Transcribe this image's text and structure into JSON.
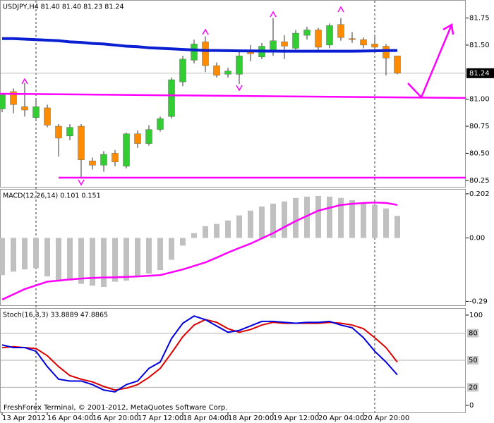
{
  "chart_data": [
    {
      "type": "candlestick",
      "title": "USDJPY,H4  81.40 81.40 81.23 81.24",
      "categories": [
        "13 Apr 2012",
        null,
        null,
        null,
        "16 Apr 04:00",
        null,
        null,
        null,
        "16 Apr 20:00",
        null,
        null,
        null,
        "17 Apr 12:00",
        null,
        null,
        null,
        "18 Apr 04:00",
        null,
        null,
        null,
        "18 Apr 20:00",
        null,
        null,
        null,
        "19 Apr 12:00",
        null,
        null,
        null,
        "20 Apr 04:00",
        null,
        null,
        null,
        "20 Apr 20:00",
        null,
        null,
        null
      ],
      "open": [
        80.91,
        81.07,
        80.93,
        80.83,
        80.92,
        80.75,
        80.66,
        80.75,
        80.43,
        80.39,
        80.5,
        80.38,
        80.68,
        80.59,
        80.72,
        80.84,
        81.16,
        81.36,
        81.53,
        81.31,
        81.23,
        81.23,
        81.45,
        81.39,
        81.45,
        81.53,
        81.47,
        81.59,
        81.64,
        81.5,
        81.69,
        81.56,
        81.55,
        81.51,
        81.49,
        81.4
      ],
      "high": [
        81.05,
        81.1,
        81.15,
        81.0,
        80.95,
        80.77,
        80.77,
        80.77,
        80.46,
        80.52,
        80.53,
        80.69,
        80.71,
        80.76,
        80.84,
        81.2,
        81.4,
        81.55,
        81.58,
        81.34,
        81.29,
        81.45,
        81.5,
        81.52,
        81.75,
        81.59,
        81.64,
        81.67,
        81.66,
        81.7,
        81.75,
        81.62,
        81.57,
        81.59,
        81.51,
        81.4
      ],
      "low": [
        80.88,
        80.87,
        80.84,
        80.8,
        80.74,
        80.47,
        80.62,
        80.27,
        80.35,
        80.33,
        80.38,
        80.36,
        80.55,
        80.57,
        80.7,
        80.82,
        81.12,
        81.33,
        81.25,
        81.2,
        81.2,
        81.14,
        81.35,
        81.37,
        81.4,
        81.37,
        81.44,
        81.55,
        81.45,
        81.47,
        81.54,
        81.52,
        81.47,
        81.45,
        81.22,
        81.23
      ],
      "close": [
        81.04,
        80.95,
        80.9,
        80.93,
        80.76,
        80.64,
        80.74,
        80.44,
        80.39,
        80.49,
        80.42,
        80.68,
        80.59,
        80.72,
        80.82,
        81.18,
        81.37,
        81.51,
        81.31,
        81.22,
        81.26,
        81.4,
        81.42,
        81.49,
        81.54,
        81.49,
        81.61,
        81.64,
        81.48,
        81.68,
        81.57,
        81.55,
        81.5,
        81.48,
        81.38,
        81.24
      ],
      "up_color": "#32cd32",
      "down_color": "#ff8c00",
      "ma": {
        "color": "#0a1ed2",
        "values": [
          81.56,
          81.56,
          81.555,
          81.55,
          81.545,
          81.54,
          81.53,
          81.525,
          81.515,
          81.51,
          81.5,
          81.49,
          81.485,
          81.475,
          81.47,
          81.465,
          81.46,
          81.455,
          81.45,
          81.45,
          81.448,
          81.447,
          81.446,
          81.445,
          81.444,
          81.443,
          81.443,
          81.443,
          81.443,
          81.443,
          81.443,
          81.443,
          81.445,
          81.447,
          81.449,
          81.45
        ]
      },
      "last_price": 81.24,
      "ylim": [
        80.19,
        81.91
      ],
      "yticks": [
        81.75,
        {
          "value": 81.5,
          "label": "81.50"
        },
        {
          "value": 81.0,
          "label": "81.00"
        },
        80.75,
        {
          "value": 80.5,
          "label": "80.50"
        },
        80.25
      ]
    },
    {
      "type": "macd",
      "title": "MACD(12,26,14) 0.101 0.151",
      "histogram": {
        "color": "#c0c0c0",
        "values": [
          -0.17,
          -0.154,
          -0.144,
          -0.138,
          -0.176,
          -0.2,
          -0.195,
          -0.21,
          -0.218,
          -0.224,
          -0.2,
          -0.195,
          -0.176,
          -0.163,
          -0.147,
          -0.1,
          -0.035,
          0.022,
          0.054,
          0.064,
          0.08,
          0.103,
          0.125,
          0.144,
          0.157,
          0.167,
          0.183,
          0.189,
          0.192,
          0.189,
          0.183,
          0.173,
          0.163,
          0.151,
          0.135,
          0.101
        ]
      },
      "signal": {
        "color": "#ff00ff",
        "values": [
          -0.282,
          -0.258,
          -0.234,
          -0.217,
          -0.2,
          -0.195,
          -0.19,
          -0.186,
          -0.183,
          -0.181,
          -0.18,
          -0.178,
          -0.176,
          -0.173,
          -0.17,
          -0.157,
          -0.144,
          -0.128,
          -0.112,
          -0.09,
          -0.067,
          -0.046,
          -0.026,
          -0.002,
          0.022,
          0.05,
          0.077,
          0.101,
          0.125,
          0.138,
          0.151,
          0.156,
          0.16,
          0.162,
          0.16,
          0.151
        ]
      },
      "ylim": [
        -0.308,
        0.221
      ],
      "yticks": [
        0.202,
        {
          "value": 0,
          "label": "0.00"
        },
        -0.29
      ]
    },
    {
      "type": "stochastic",
      "title": "Stoch(16,3,3) 33.8889 47.8865",
      "main": {
        "color": "#0000dd",
        "values": [
          67,
          64,
          64,
          60,
          43,
          29,
          27,
          27,
          23,
          17,
          15,
          23,
          27,
          41,
          48,
          74,
          91,
          99,
          95,
          88,
          81,
          83,
          88,
          93,
          93,
          92,
          91,
          92,
          92,
          93,
          89,
          86,
          75,
          60,
          48,
          33.8889
        ]
      },
      "signal": {
        "color": "#dd0000",
        "values": [
          64,
          65,
          64,
          63,
          55,
          43,
          33,
          29,
          26,
          21,
          17,
          19,
          23,
          31,
          41,
          58,
          76,
          89,
          95,
          92,
          85,
          81,
          84,
          89,
          92,
          91,
          91,
          91,
          91,
          92,
          91,
          89,
          85,
          75,
          64,
          47.8865
        ]
      },
      "levels": [
        80,
        50,
        20
      ],
      "ylim": [
        -7.8,
        107
      ],
      "yticks": [
        100,
        0
      ]
    }
  ],
  "footer": "FreshForex Terminal, © 2001-2012, MetaQuotes Software Corp."
}
